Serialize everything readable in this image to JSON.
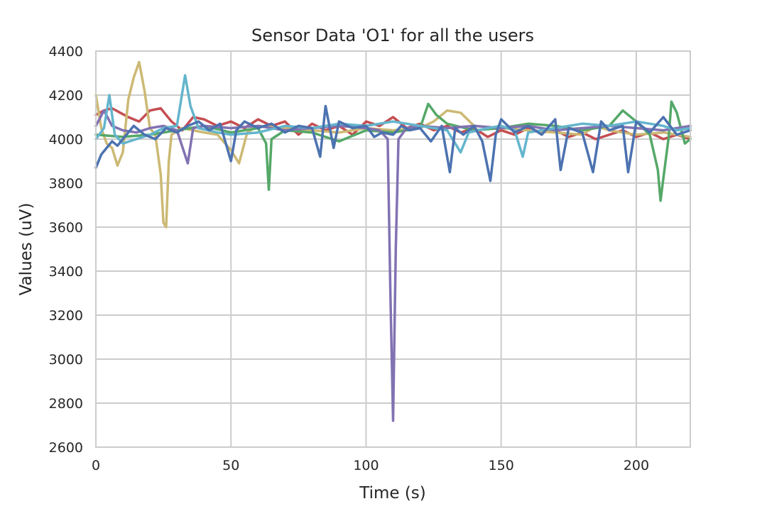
{
  "chart_data": {
    "type": "line",
    "title": "Sensor Data 'O1' for all the users",
    "xlabel": "Time (s)",
    "ylabel": "Values (uV)",
    "xlim": [
      0,
      220
    ],
    "ylim": [
      2600,
      4400
    ],
    "xticks": [
      0,
      50,
      100,
      150,
      200
    ],
    "yticks": [
      2600,
      2800,
      3000,
      3200,
      3400,
      3600,
      3800,
      4000,
      4200,
      4400
    ],
    "grid": true,
    "legend": "none",
    "series": [
      {
        "color": "#c44e52",
        "points": [
          [
            0,
            4110
          ],
          [
            3,
            4130
          ],
          [
            6,
            4140
          ],
          [
            9,
            4120
          ],
          [
            12,
            4100
          ],
          [
            16,
            4080
          ],
          [
            20,
            4130
          ],
          [
            24,
            4140
          ],
          [
            28,
            4080
          ],
          [
            32,
            4040
          ],
          [
            36,
            4100
          ],
          [
            40,
            4090
          ],
          [
            45,
            4060
          ],
          [
            50,
            4080
          ],
          [
            55,
            4050
          ],
          [
            60,
            4090
          ],
          [
            65,
            4060
          ],
          [
            70,
            4080
          ],
          [
            75,
            4020
          ],
          [
            80,
            4070
          ],
          [
            85,
            4040
          ],
          [
            90,
            4060
          ],
          [
            95,
            4020
          ],
          [
            100,
            4080
          ],
          [
            105,
            4060
          ],
          [
            110,
            4100
          ],
          [
            115,
            4050
          ],
          [
            120,
            4070
          ],
          [
            125,
            4040
          ],
          [
            130,
            4060
          ],
          [
            135,
            4030
          ],
          [
            140,
            4050
          ],
          [
            145,
            4010
          ],
          [
            150,
            4040
          ],
          [
            155,
            4020
          ],
          [
            160,
            4050
          ],
          [
            165,
            4030
          ],
          [
            170,
            4040
          ],
          [
            175,
            4010
          ],
          [
            180,
            4030
          ],
          [
            185,
            4000
          ],
          [
            190,
            4020
          ],
          [
            195,
            4040
          ],
          [
            200,
            4010
          ],
          [
            205,
            4030
          ],
          [
            210,
            4000
          ],
          [
            215,
            4020
          ],
          [
            220,
            4000
          ]
        ]
      },
      {
        "color": "#ccb974",
        "points": [
          [
            0,
            4200
          ],
          [
            2,
            4050
          ],
          [
            4,
            3980
          ],
          [
            6,
            3960
          ],
          [
            8,
            3880
          ],
          [
            10,
            3940
          ],
          [
            12,
            4180
          ],
          [
            14,
            4280
          ],
          [
            16,
            4350
          ],
          [
            18,
            4220
          ],
          [
            20,
            4050
          ],
          [
            22,
            4020
          ],
          [
            24,
            3840
          ],
          [
            25,
            3620
          ],
          [
            26,
            3600
          ],
          [
            27,
            3900
          ],
          [
            28,
            4020
          ],
          [
            32,
            4050
          ],
          [
            36,
            4040
          ],
          [
            40,
            4030
          ],
          [
            45,
            4020
          ],
          [
            50,
            3950
          ],
          [
            53,
            3890
          ],
          [
            56,
            4030
          ],
          [
            60,
            4060
          ],
          [
            70,
            4050
          ],
          [
            80,
            4040
          ],
          [
            90,
            4030
          ],
          [
            100,
            4050
          ],
          [
            110,
            4040
          ],
          [
            120,
            4050
          ],
          [
            125,
            4080
          ],
          [
            130,
            4130
          ],
          [
            135,
            4120
          ],
          [
            140,
            4060
          ],
          [
            150,
            4050
          ],
          [
            160,
            4040
          ],
          [
            170,
            4030
          ],
          [
            180,
            4020
          ],
          [
            185,
            4060
          ],
          [
            190,
            4040
          ],
          [
            200,
            4020
          ],
          [
            210,
            4030
          ],
          [
            220,
            4010
          ]
        ]
      },
      {
        "color": "#55a868",
        "points": [
          [
            0,
            4020
          ],
          [
            10,
            4010
          ],
          [
            20,
            4020
          ],
          [
            30,
            4040
          ],
          [
            40,
            4060
          ],
          [
            50,
            4030
          ],
          [
            60,
            4050
          ],
          [
            63,
            3980
          ],
          [
            64,
            3770
          ],
          [
            65,
            4000
          ],
          [
            70,
            4040
          ],
          [
            80,
            4030
          ],
          [
            85,
            4010
          ],
          [
            90,
            3990
          ],
          [
            100,
            4040
          ],
          [
            110,
            4030
          ],
          [
            120,
            4050
          ],
          [
            123,
            4160
          ],
          [
            126,
            4110
          ],
          [
            130,
            4070
          ],
          [
            140,
            4040
          ],
          [
            150,
            4050
          ],
          [
            160,
            4070
          ],
          [
            170,
            4060
          ],
          [
            180,
            4040
          ],
          [
            190,
            4060
          ],
          [
            195,
            4130
          ],
          [
            200,
            4080
          ],
          [
            205,
            4020
          ],
          [
            208,
            3860
          ],
          [
            209,
            3720
          ],
          [
            210,
            3820
          ],
          [
            212,
            4010
          ],
          [
            213,
            4170
          ],
          [
            215,
            4120
          ],
          [
            218,
            3980
          ],
          [
            220,
            4000
          ]
        ]
      },
      {
        "color": "#8172b2",
        "points": [
          [
            0,
            4060
          ],
          [
            3,
            4130
          ],
          [
            6,
            4060
          ],
          [
            10,
            4040
          ],
          [
            15,
            4030
          ],
          [
            20,
            4050
          ],
          [
            25,
            4060
          ],
          [
            30,
            4040
          ],
          [
            34,
            3890
          ],
          [
            36,
            4050
          ],
          [
            40,
            4060
          ],
          [
            50,
            4050
          ],
          [
            60,
            4060
          ],
          [
            70,
            4040
          ],
          [
            80,
            4050
          ],
          [
            90,
            4060
          ],
          [
            100,
            4050
          ],
          [
            105,
            4040
          ],
          [
            108,
            4000
          ],
          [
            109,
            3300
          ],
          [
            110,
            2720
          ],
          [
            111,
            3500
          ],
          [
            112,
            4000
          ],
          [
            115,
            4050
          ],
          [
            120,
            4060
          ],
          [
            130,
            4050
          ],
          [
            140,
            4060
          ],
          [
            150,
            4050
          ],
          [
            160,
            4060
          ],
          [
            170,
            4040
          ],
          [
            180,
            4050
          ],
          [
            190,
            4060
          ],
          [
            200,
            4050
          ],
          [
            210,
            4040
          ],
          [
            220,
            4060
          ]
        ]
      },
      {
        "color": "#64b5cd",
        "points": [
          [
            0,
            4000
          ],
          [
            3,
            4050
          ],
          [
            5,
            4200
          ],
          [
            7,
            4020
          ],
          [
            10,
            3980
          ],
          [
            15,
            4000
          ],
          [
            20,
            4020
          ],
          [
            25,
            4050
          ],
          [
            30,
            4060
          ],
          [
            33,
            4290
          ],
          [
            35,
            4150
          ],
          [
            38,
            4050
          ],
          [
            45,
            4030
          ],
          [
            50,
            4020
          ],
          [
            60,
            4030
          ],
          [
            70,
            4060
          ],
          [
            80,
            4050
          ],
          [
            90,
            4070
          ],
          [
            100,
            4060
          ],
          [
            110,
            4080
          ],
          [
            120,
            4060
          ],
          [
            130,
            4040
          ],
          [
            135,
            3940
          ],
          [
            138,
            4030
          ],
          [
            145,
            4050
          ],
          [
            150,
            4060
          ],
          [
            155,
            4040
          ],
          [
            158,
            3920
          ],
          [
            160,
            4030
          ],
          [
            170,
            4050
          ],
          [
            180,
            4070
          ],
          [
            190,
            4060
          ],
          [
            200,
            4080
          ],
          [
            210,
            4060
          ],
          [
            215,
            4040
          ],
          [
            220,
            4050
          ]
        ]
      },
      {
        "color": "#4c72b0",
        "points": [
          [
            0,
            3870
          ],
          [
            2,
            3930
          ],
          [
            4,
            3960
          ],
          [
            6,
            3990
          ],
          [
            8,
            3970
          ],
          [
            10,
            4000
          ],
          [
            14,
            4060
          ],
          [
            18,
            4020
          ],
          [
            22,
            4000
          ],
          [
            26,
            4050
          ],
          [
            30,
            4030
          ],
          [
            34,
            4060
          ],
          [
            38,
            4080
          ],
          [
            42,
            4040
          ],
          [
            46,
            4070
          ],
          [
            50,
            3900
          ],
          [
            52,
            4040
          ],
          [
            55,
            4080
          ],
          [
            60,
            4050
          ],
          [
            65,
            4070
          ],
          [
            70,
            4030
          ],
          [
            75,
            4060
          ],
          [
            80,
            4050
          ],
          [
            83,
            3920
          ],
          [
            85,
            4150
          ],
          [
            88,
            3960
          ],
          [
            90,
            4080
          ],
          [
            95,
            4050
          ],
          [
            100,
            4060
          ],
          [
            103,
            4010
          ],
          [
            106,
            4030
          ],
          [
            110,
            4020
          ],
          [
            113,
            4060
          ],
          [
            116,
            4040
          ],
          [
            120,
            4050
          ],
          [
            124,
            3990
          ],
          [
            128,
            4060
          ],
          [
            131,
            3850
          ],
          [
            133,
            4050
          ],
          [
            136,
            4020
          ],
          [
            140,
            4060
          ],
          [
            143,
            3990
          ],
          [
            146,
            3810
          ],
          [
            148,
            4020
          ],
          [
            150,
            4090
          ],
          [
            155,
            4030
          ],
          [
            160,
            4060
          ],
          [
            165,
            4020
          ],
          [
            170,
            4090
          ],
          [
            172,
            3860
          ],
          [
            175,
            4050
          ],
          [
            180,
            4030
          ],
          [
            184,
            3850
          ],
          [
            187,
            4080
          ],
          [
            190,
            4040
          ],
          [
            195,
            4060
          ],
          [
            197,
            3850
          ],
          [
            200,
            4080
          ],
          [
            205,
            4030
          ],
          [
            210,
            4100
          ],
          [
            215,
            4020
          ],
          [
            220,
            4040
          ]
        ]
      }
    ]
  }
}
